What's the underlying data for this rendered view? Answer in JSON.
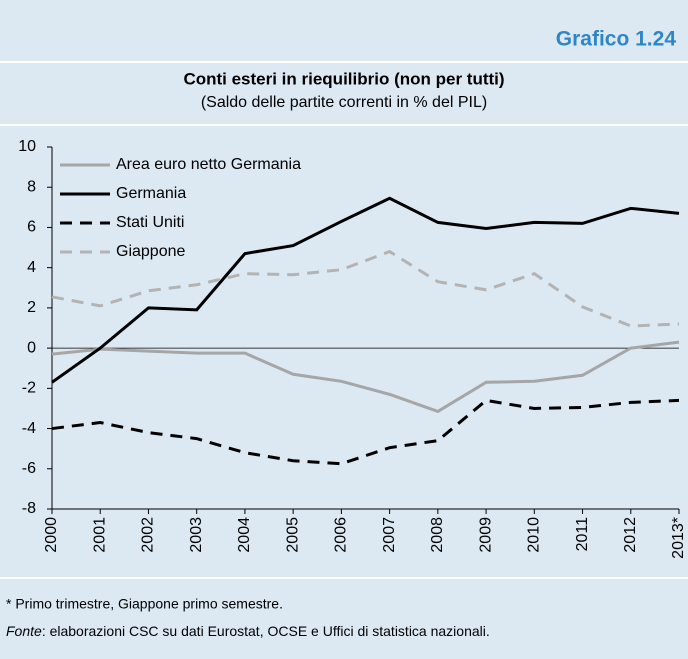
{
  "header": {
    "label": "Grafico 1.24"
  },
  "chart_data": {
    "type": "line",
    "title": "Conti esteri in riequilibrio (non per tutti)",
    "subtitle": "(Saldo delle partite correnti in % del PIL)",
    "categories": [
      "2000",
      "2001",
      "2002",
      "2003",
      "2004",
      "2005",
      "2006",
      "2007",
      "2008",
      "2009",
      "2010",
      "2011",
      "2012",
      "2013*"
    ],
    "series": [
      {
        "name": "Area euro netto Germania",
        "color": "#a6a6a6",
        "style": "solid",
        "values": [
          -0.3,
          -0.05,
          -0.15,
          -0.25,
          -0.25,
          -1.3,
          -1.65,
          -2.3,
          -3.15,
          -1.7,
          -1.65,
          -1.35,
          0.0,
          0.3
        ]
      },
      {
        "name": "Germania",
        "color": "#000000",
        "style": "solid",
        "values": [
          -1.7,
          0.0,
          2.0,
          1.9,
          4.7,
          5.1,
          6.3,
          7.45,
          6.25,
          5.95,
          6.25,
          6.2,
          6.95,
          6.7
        ]
      },
      {
        "name": "Stati Uniti",
        "color": "#000000",
        "style": "dashed",
        "values": [
          -4.0,
          -3.7,
          -4.2,
          -4.5,
          -5.2,
          -5.6,
          -5.75,
          -4.95,
          -4.6,
          -2.6,
          -3.0,
          -2.95,
          -2.7,
          -2.6
        ]
      },
      {
        "name": "Giappone",
        "color": "#b3b3b3",
        "style": "dashed",
        "values": [
          2.55,
          2.1,
          2.85,
          3.15,
          3.7,
          3.65,
          3.9,
          4.8,
          3.3,
          2.9,
          3.7,
          2.05,
          1.1,
          1.2
        ]
      }
    ],
    "ylim": [
      -8,
      10
    ],
    "yticks": [
      -8,
      -6,
      -4,
      -2,
      0,
      2,
      4,
      6,
      8,
      10
    ],
    "legend": "upper left"
  },
  "notes": {
    "footnote": "* Primo trimestre, Giappone primo semestre.",
    "source_label": "Fonte",
    "source_text": ": elaborazioni CSC su dati Eurostat, OCSE e Uffici di statistica nazionali."
  }
}
